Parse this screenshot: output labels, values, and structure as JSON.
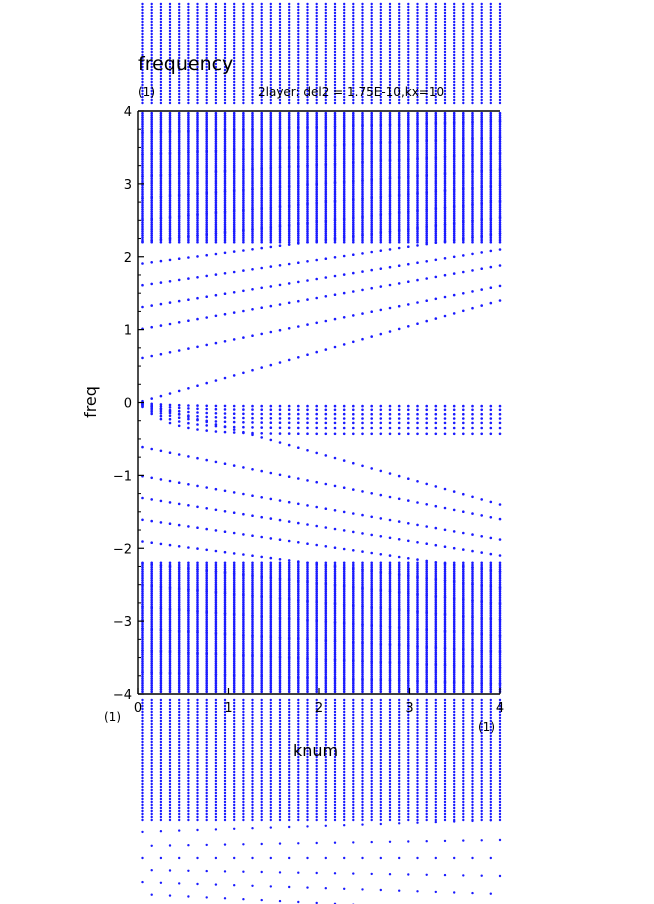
{
  "chart_data": {
    "type": "scatter",
    "title": "frequency",
    "subtitle": "2layer: del2 = 1.75E-10,kx=10",
    "xlabel": "knum",
    "ylabel": "freq",
    "xlim": [
      0,
      4
    ],
    "ylim": [
      -4,
      4
    ],
    "x_ticks": [
      "0",
      "1",
      "2",
      "3",
      "4"
    ],
    "y_ticks": [
      "4",
      "3",
      "2",
      "1",
      "0",
      "−1",
      "−2",
      "−3",
      "−4"
    ],
    "corner_labels": {
      "top_left": "(1)",
      "bottom_left": "(1)",
      "bottom_right": "(1)"
    },
    "marker_color": "#1a1aff",
    "grid": false,
    "legend": "none",
    "series": [
      {
        "kind": "dispersion-branches",
        "x_samples": 40,
        "branch_families": [
          {
            "description": "positive linear branches",
            "f0": [
              0.0,
              0.6,
              1.0,
              1.3,
              1.6,
              1.9,
              2.2,
              2.5,
              2.8,
              3.1,
              3.4,
              3.7
            ],
            "slope": [
              0.35,
              0.25,
              0.22,
              0.2,
              0.18,
              0.16,
              0.14,
              0.12,
              0.1,
              0.08,
              0.06,
              0.04
            ]
          },
          {
            "description": "near-zero saturating branches",
            "amplitudes": [
              0.05,
              0.1,
              0.16,
              0.22,
              0.28,
              0.35,
              0.43
            ]
          },
          {
            "description": "negative linear branches",
            "f0": [
              0.0,
              -0.6,
              -1.0,
              -1.3,
              -1.6,
              -1.9,
              -2.2,
              -2.5,
              -2.8,
              -3.1,
              -3.4,
              -3.7
            ],
            "slope": [
              -0.35,
              -0.25,
              -0.22,
              -0.2,
              -0.18,
              -0.16,
              -0.14,
              -0.12,
              -0.1,
              -0.08,
              -0.06,
              -0.04
            ]
          },
          {
            "description": "dense high-frequency sampled columns",
            "levels_per_column": 60
          }
        ]
      }
    ]
  }
}
